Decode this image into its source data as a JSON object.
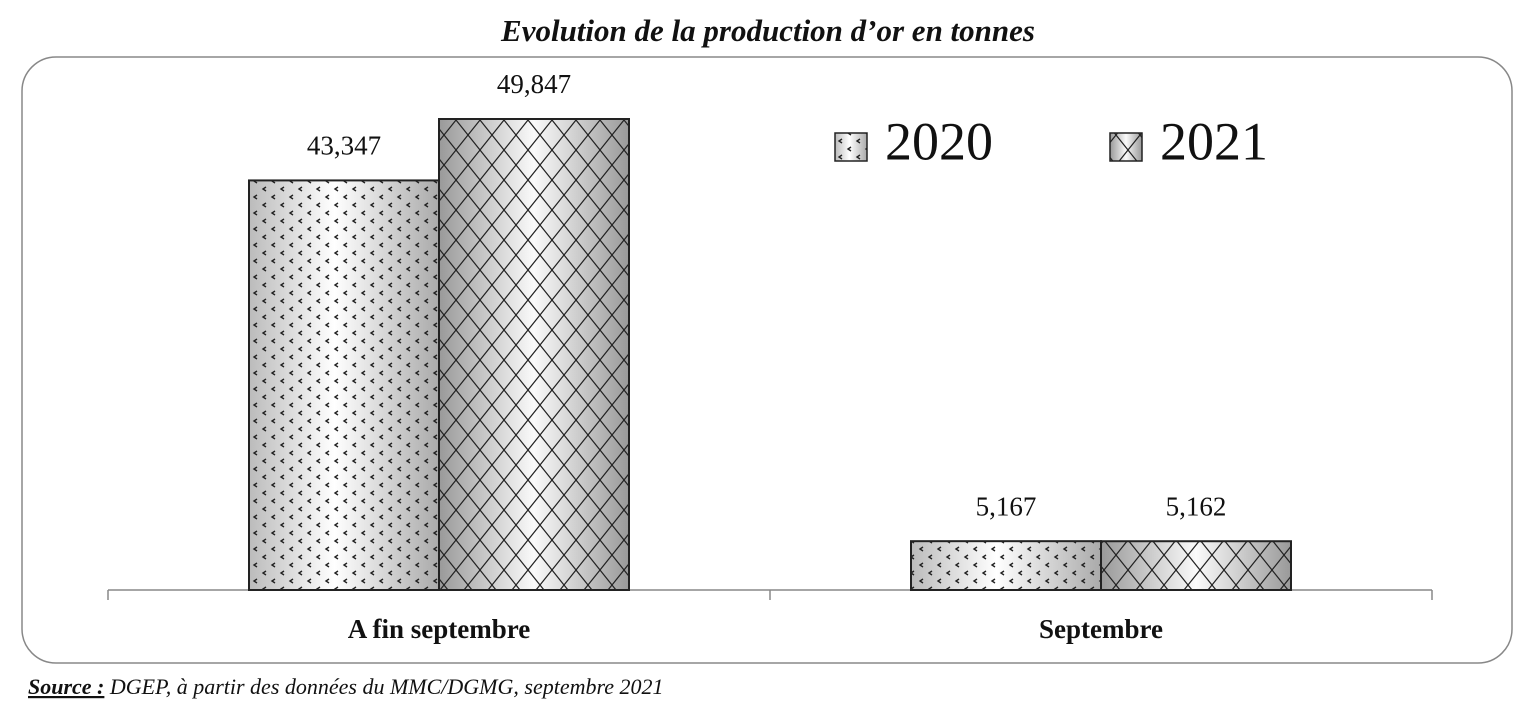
{
  "chart_data": {
    "type": "bar",
    "title": "Evolution de la production d’or en tonnes",
    "categories": [
      "A fin septembre",
      "Septembre"
    ],
    "series": [
      {
        "name": "2020",
        "values": [
          43.347,
          5.167
        ],
        "value_labels": [
          "43,347",
          "5,167"
        ]
      },
      {
        "name": "2021",
        "values": [
          49.847,
          5.162
        ],
        "value_labels": [
          "49,847",
          "5,162"
        ]
      }
    ],
    "source_label": "Source :",
    "source": "DGEP, à partir des données du MMC/DGMG, septembre 2021"
  }
}
